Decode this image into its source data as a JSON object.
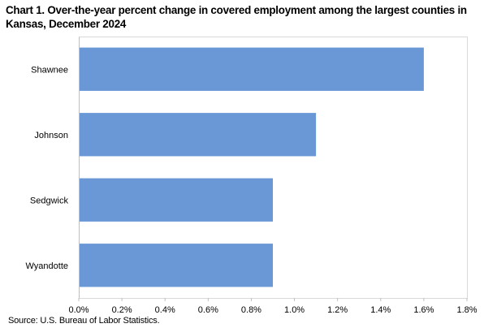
{
  "chart_data": {
    "type": "bar",
    "orientation": "horizontal",
    "title": "Chart 1. Over-the-year percent change in covered employment among the largest counties in Kansas, December 2024",
    "categories": [
      "Shawnee",
      "Johnson",
      "Sedgwick",
      "Wyandotte"
    ],
    "series": [
      {
        "values": [
          1.6,
          1.1,
          0.9,
          0.9
        ]
      }
    ],
    "xlim": [
      0,
      1.8
    ],
    "x_ticks": [
      "0.0%",
      "0.2%",
      "0.4%",
      "0.6%",
      "0.8%",
      "1.0%",
      "1.2%",
      "1.4%",
      "1.6%",
      "1.8%"
    ],
    "x_tick_values": [
      0,
      0.2,
      0.4,
      0.6,
      0.8,
      1.0,
      1.2,
      1.4,
      1.6,
      1.8
    ],
    "xlabel": "",
    "ylabel": "",
    "grid": false,
    "legend": "none",
    "bar_color": "#6a98d6",
    "source": "Source: U.S. Bureau of Labor Statistics."
  }
}
